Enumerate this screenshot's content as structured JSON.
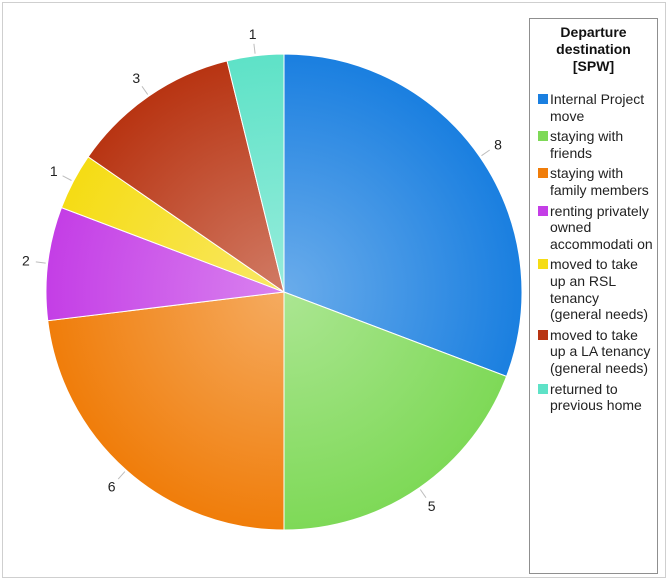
{
  "chart_data": {
    "type": "pie",
    "title": "",
    "legend_title": "Departure destination [SPW]",
    "legend_position": "right",
    "slices": [
      {
        "label": "Internal Project move",
        "value": 8,
        "color": "#1a7fe0"
      },
      {
        "label": "staying with friends",
        "value": 5,
        "color": "#7ed957"
      },
      {
        "label": "staying with family members",
        "value": 6,
        "color": "#f07d0a"
      },
      {
        "label": "renting privately owned accommodati on",
        "value": 2,
        "color": "#c43ee6"
      },
      {
        "label": "moved to take up an RSL tenancy (general needs)",
        "value": 1,
        "color": "#f5dc14"
      },
      {
        "label": "moved to take up a LA tenancy (general needs)",
        "value": 3,
        "color": "#b83412"
      },
      {
        "label": "returned to previous home",
        "value": 1,
        "color": "#5ee2c7"
      }
    ]
  }
}
